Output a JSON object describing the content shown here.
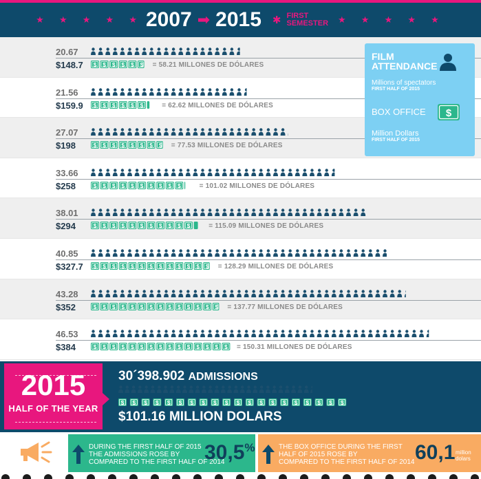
{
  "header": {
    "year_start": "2007",
    "year_end": "2015",
    "semester": [
      "FIRST",
      "SEMESTER"
    ],
    "stars_left": "★ ★ ★ ★ ★",
    "stars_right": "★ ★ ★ ★ ★",
    "mid_star": "✱"
  },
  "colors": {
    "navy": "#0e4a6b",
    "magenta": "#e8177e",
    "green": "#2cb78c",
    "light_blue": "#7dd0f3",
    "orange": "#f9ab62",
    "person": "#1b4f6e"
  },
  "legend": {
    "film_title": "FILM ATTENDANCE",
    "film_sub": "Millions of spectators",
    "film_sub2": "FIRST HALF OF 2015",
    "box_title": "BOX OFFICE",
    "box_sub": "Million Dollars",
    "box_sub2": "FIRST HALF OF 2015",
    "person_icon": "person-icon",
    "bill_icon": "dollar-bill-icon"
  },
  "chart_data": {
    "type": "pictograph",
    "series": [
      {
        "name": "Film attendance (millions of spectators)",
        "values": [
          20.67,
          21.56,
          27.07,
          33.66,
          38.01,
          40.85,
          43.28,
          46.53
        ]
      },
      {
        "name": "Box office (million dollars)",
        "values": [
          148.7,
          159.9,
          198,
          258,
          294,
          327.7,
          352,
          384
        ]
      }
    ],
    "attendance_labels": [
      "20.67",
      "21.56",
      "27.07",
      "33.66",
      "38.01",
      "40.85",
      "43.28",
      "46.53"
    ],
    "box_labels": [
      "$148.7",
      "$159.9",
      "$198",
      "$258",
      "$294",
      "$327.7",
      "$352",
      "$384"
    ],
    "conversions": [
      "= 58.21 MILLONES DE DÓLARES",
      "= 62.62 MILLONES DE DÓLARES",
      "= 77.53 MILLONES DE DÓLARES",
      "= 101.02 MILLONES DE DÓLARES",
      "= 115.09 MILLONES DE DÓLARES",
      "= 128.29 MILLONES DE DÓLARES",
      "= 137.77 MILLONES DE DÓLARES",
      "= 150.31 MILLONES DE DÓLARES"
    ],
    "bills": [
      5.8,
      6.3,
      7.8,
      10.1,
      11.5,
      12.8,
      13.8,
      15.0
    ]
  },
  "summary": {
    "year": "2015",
    "half": "HALF OF THE YEAR",
    "admissions_value": "30´398.902",
    "admissions_unit": "ADMISSIONS",
    "money": "$101.16  MILLION DOLARS",
    "people": 30.4,
    "bills": 20
  },
  "bottom": {
    "megaphone_icon": "megaphone-icon",
    "arrow_icon": "up-arrow-icon",
    "green_text": [
      "DURING THE FIRST HALF OF 2015",
      "THE ADMISSIONS ROSE BY",
      "COMPARED TO THE FIRST HALF OF 2014"
    ],
    "green_value": "30,5",
    "green_unit": "%",
    "orange_text": [
      "THE BOX OFFICE DURING THE FIRST",
      "HALF OF 2015 ROSE BY",
      "COMPARED TO THE FIRST HALF OF 2014"
    ],
    "orange_value": "60,1",
    "orange_unit": [
      "million",
      "dolars"
    ]
  }
}
